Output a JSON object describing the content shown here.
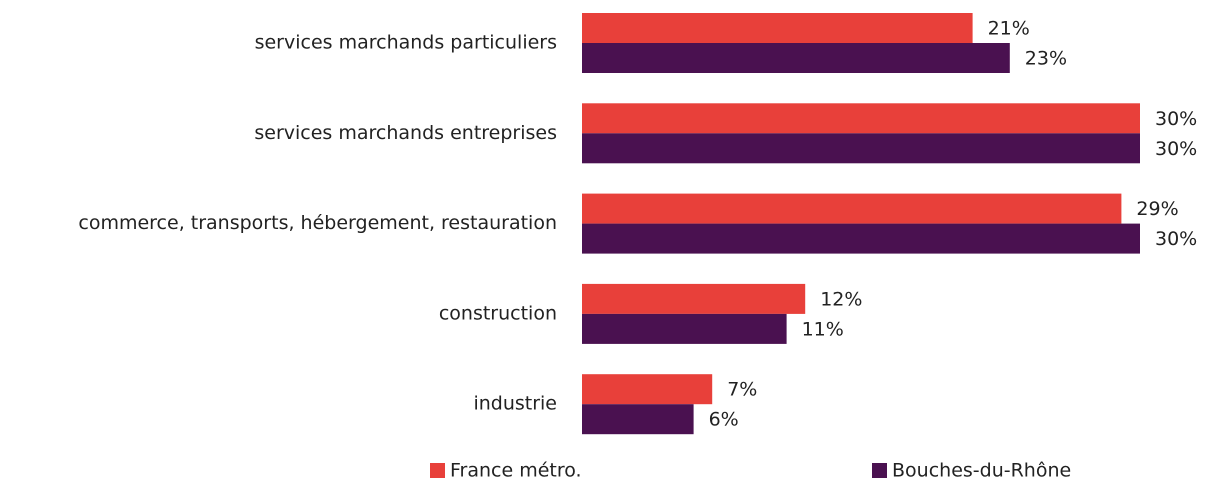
{
  "chart_data": {
    "type": "bar",
    "orientation": "horizontal",
    "categories": [
      "services marchands particuliers",
      "services marchands entreprises",
      "commerce, transports, hébergement, restauration",
      "construction",
      "industrie"
    ],
    "series": [
      {
        "name": "France métro.",
        "color": "#e8403a",
        "values": [
          21,
          30,
          29,
          12,
          7
        ],
        "value_labels": [
          "21%",
          "30%",
          "29%",
          "12%",
          "7%"
        ]
      },
      {
        "name": "Bouches-du-Rhône",
        "color": "#4a1150",
        "values": [
          23,
          30,
          30,
          11,
          6
        ],
        "value_labels": [
          "23%",
          "30%",
          "30%",
          "11%",
          "6%"
        ]
      }
    ]
  }
}
